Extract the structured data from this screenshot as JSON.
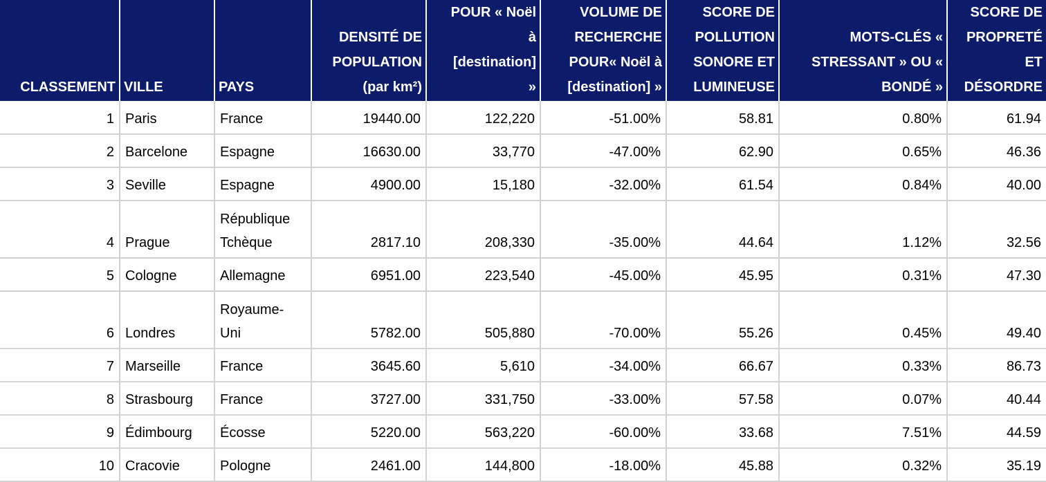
{
  "colors": {
    "header_bg": "#0d1b6b",
    "header_text": "#ffffff",
    "header_divider": "#ffffff",
    "body_text": "#000000",
    "grid_line": "#d2d2d2",
    "row_bg": "#ffffff"
  },
  "table": {
    "columns": [
      {
        "id": "classement",
        "label": "CLASSEMENT",
        "align": "right"
      },
      {
        "id": "ville",
        "label": "VILLE",
        "align": "left"
      },
      {
        "id": "pays",
        "label": "PAYS",
        "align": "left"
      },
      {
        "id": "densite-population",
        "label": "DENSITÉ DE\nPOPULATION\n(par km²)",
        "align": "right"
      },
      {
        "id": "pour-noel-destination",
        "label": "POUR « Noël\nà\n[destination]\n»",
        "align": "right"
      },
      {
        "id": "volume-recherche",
        "label": "VOLUME DE\nRECHERCHE\nPOUR« Noël à\n[destination] »",
        "align": "right"
      },
      {
        "id": "score-pollution",
        "label": "SCORE DE\nPOLLUTION\nSONORE ET\nLUMINEUSE",
        "align": "right"
      },
      {
        "id": "mots-cles",
        "label": "MOTS-CLÉS «\nSTRESSANT » OU «\nBONDÉ »",
        "align": "right"
      },
      {
        "id": "score-proprete",
        "label": "SCORE DE\nPROPRETÉ\nET\nDÉSORDRE",
        "align": "right"
      }
    ],
    "rows": [
      [
        "1",
        "Paris",
        "France",
        "19440.00",
        "122,220",
        "-51.00%",
        "58.81",
        "0.80%",
        "61.94"
      ],
      [
        "2",
        "Barcelone",
        "Espagne",
        "16630.00",
        "33,770",
        "-47.00%",
        "62.90",
        "0.65%",
        "46.36"
      ],
      [
        "3",
        "Seville",
        "Espagne",
        "4900.00",
        "15,180",
        "-32.00%",
        "61.54",
        "0.84%",
        "40.00"
      ],
      [
        "4",
        "Prague",
        "République\nTchèque",
        "2817.10",
        "208,330",
        "-35.00%",
        "44.64",
        "1.12%",
        "32.56"
      ],
      [
        "5",
        "Cologne",
        "Allemagne",
        "6951.00",
        "223,540",
        "-45.00%",
        "45.95",
        "0.31%",
        "47.30"
      ],
      [
        "6",
        "Londres",
        "Royaume-\nUni",
        "5782.00",
        "505,880",
        "-70.00%",
        "55.26",
        "0.45%",
        "49.40"
      ],
      [
        "7",
        "Marseille",
        "France",
        "3645.60",
        "5,610",
        "-34.00%",
        "66.67",
        "0.33%",
        "86.73"
      ],
      [
        "8",
        "Strasbourg",
        "France",
        "3727.00",
        "331,750",
        "-33.00%",
        "57.58",
        "0.07%",
        "40.44"
      ],
      [
        "9",
        "Édimbourg",
        "Écosse",
        "5220.00",
        "563,220",
        "-60.00%",
        "33.68",
        "7.51%",
        "44.59"
      ],
      [
        "10",
        "Cracovie",
        "Pologne",
        "2461.00",
        "144,800",
        "-18.00%",
        "45.88",
        "0.32%",
        "35.19"
      ]
    ]
  }
}
